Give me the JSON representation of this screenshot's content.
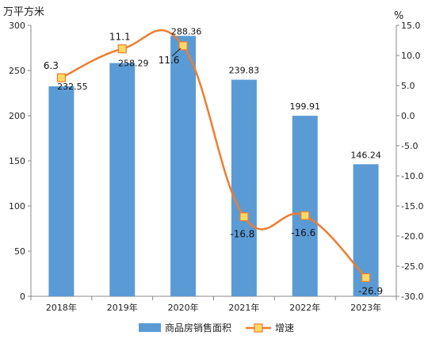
{
  "chart_data": {
    "type": "bar",
    "categories": [
      "2018年",
      "2019年",
      "2020年",
      "2021年",
      "2022年",
      "2023年"
    ],
    "series": [
      {
        "name": "商品房销售面积",
        "type": "bar",
        "axis": "left",
        "color": "#5b9bd5",
        "values": [
          232.55,
          258.29,
          288.36,
          239.83,
          199.91,
          146.24
        ],
        "labels": [
          "232.55",
          "258.29",
          "288.36",
          "239.83",
          "199.91",
          "146.24"
        ]
      },
      {
        "name": "增速",
        "type": "line",
        "axis": "right",
        "color": "#ed7d31",
        "marker_fill": "#ffd966",
        "values": [
          6.3,
          11.1,
          11.6,
          -16.8,
          -16.6,
          -26.9
        ],
        "labels": [
          "6.3",
          "11.1",
          "11.6",
          "-16.8",
          "-16.6",
          "-26.9"
        ]
      }
    ],
    "y_left": {
      "unit": "万平方米",
      "min": 0,
      "max": 300,
      "ticks": [
        0,
        50,
        100,
        150,
        200,
        250,
        300
      ],
      "tick_labels": [
        "0",
        "50",
        "100",
        "150",
        "200",
        "250",
        "300"
      ]
    },
    "y_right": {
      "unit": "%",
      "min": -30,
      "max": 15,
      "ticks": [
        15,
        10,
        5,
        0,
        -5,
        -10,
        -15,
        -20,
        -25,
        -30
      ],
      "tick_labels": [
        "15.0",
        "10.0",
        "5.0",
        "0.0",
        "-5.0",
        "-10.0",
        "-15.0",
        "-20.0",
        "-25.0",
        "-30.0"
      ]
    },
    "grid": false,
    "legend": "bottom"
  }
}
